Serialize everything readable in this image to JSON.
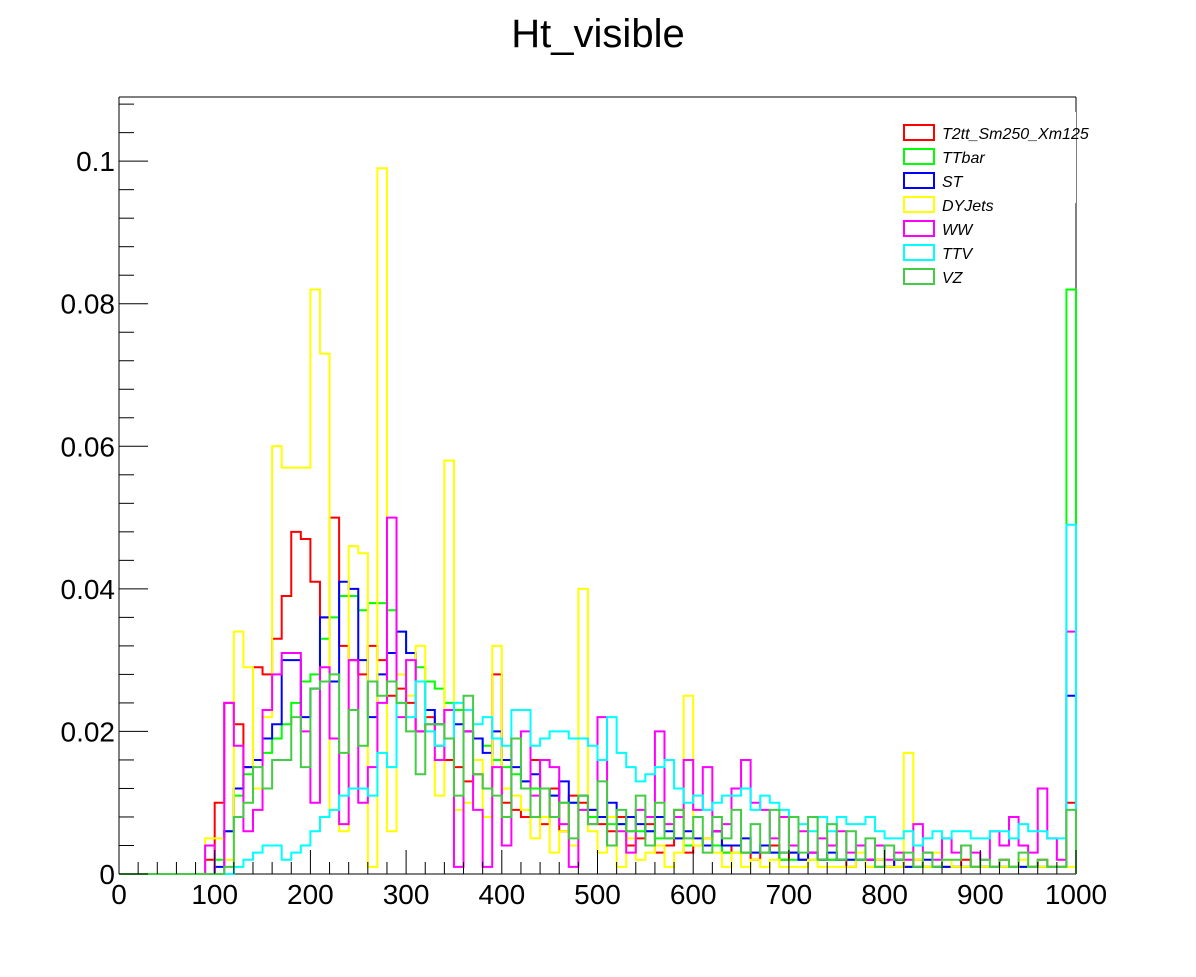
{
  "chart_data": {
    "type": "histogram",
    "title": "Ht_visible",
    "xlabel": "",
    "ylabel": "",
    "xlim": [
      0,
      1000
    ],
    "ylim": [
      0,
      0.109
    ],
    "x_ticks": [
      "0",
      "100",
      "200",
      "300",
      "400",
      "500",
      "600",
      "700",
      "800",
      "900",
      "1000"
    ],
    "x_tick_values": [
      0,
      100,
      200,
      300,
      400,
      500,
      600,
      700,
      800,
      900,
      1000
    ],
    "y_ticks": [
      "0",
      "0.02",
      "0.04",
      "0.06",
      "0.08",
      "0.1"
    ],
    "y_tick_values": [
      0,
      0.02,
      0.04,
      0.06,
      0.08,
      0.1
    ],
    "bin_width": 10,
    "bin_edges_start": 0,
    "legend_position": "top-right",
    "grid": false,
    "series": [
      {
        "name": "T2tt_Sm250_Xm125",
        "color": "#ff0000",
        "values": [
          0,
          0,
          0,
          0,
          0,
          0,
          0,
          0,
          0,
          0.002,
          0.01,
          0.024,
          0.021,
          0.015,
          0.029,
          0.028,
          0.033,
          0.039,
          0.048,
          0.047,
          0.041,
          0.036,
          0.05,
          0.032,
          0.03,
          0.028,
          0.032,
          0.03,
          0.025,
          0.026,
          0.024,
          0.02,
          0.022,
          0.018,
          0.016,
          0.015,
          0.013,
          0.014,
          0.012,
          0.028,
          0.01,
          0.009,
          0.008,
          0.016,
          0.007,
          0.012,
          0.006,
          0.011,
          0.01,
          0.009,
          0.007,
          0.006,
          0.008,
          0.004,
          0.005,
          0.007,
          0.003,
          0.004,
          0.009,
          0.003,
          0.004,
          0.005,
          0.006,
          0.003,
          0.004,
          0.003,
          0.002,
          0.003,
          0.004,
          0.002,
          0.003,
          0.002,
          0.003,
          0.002,
          0.002,
          0.002,
          0.001,
          0.002,
          0.002,
          0.001,
          0.001,
          0.002,
          0.001,
          0.002,
          0.001,
          0.001,
          0.001,
          0.001,
          0.002,
          0.001,
          0.001,
          0.001,
          0.002,
          0.001,
          0.001,
          0.001,
          0.002,
          0.001,
          0.001,
          0.01
        ]
      },
      {
        "name": "TTbar",
        "color": "#00ff00",
        "values": [
          0,
          0,
          0,
          0,
          0,
          0,
          0,
          0,
          0,
          0,
          0.002,
          0.006,
          0.011,
          0.014,
          0.016,
          0.017,
          0.019,
          0.021,
          0.024,
          0.027,
          0.028,
          0.033,
          0.036,
          0.039,
          0.039,
          0.037,
          0.038,
          0.038,
          0.037,
          0.034,
          0.031,
          0.029,
          0.027,
          0.026,
          0.024,
          0.023,
          0.02,
          0.019,
          0.018,
          0.016,
          0.015,
          0.014,
          0.013,
          0.012,
          0.012,
          0.011,
          0.01,
          0.01,
          0.009,
          0.008,
          0.008,
          0.007,
          0.007,
          0.006,
          0.006,
          0.006,
          0.005,
          0.005,
          0.005,
          0.004,
          0.004,
          0.004,
          0.004,
          0.003,
          0.003,
          0.003,
          0.003,
          0.003,
          0.003,
          0.002,
          0.002,
          0.002,
          0.002,
          0.002,
          0.002,
          0.002,
          0.002,
          0.002,
          0.001,
          0.001,
          0.001,
          0.001,
          0.001,
          0.001,
          0.001,
          0.001,
          0.001,
          0.001,
          0.001,
          0.001,
          0.001,
          0.001,
          0.001,
          0.001,
          0.001,
          0.001,
          0.001,
          0.001,
          0.001,
          0.082
        ]
      },
      {
        "name": "ST",
        "color": "#0000ff",
        "values": [
          0,
          0,
          0,
          0,
          0,
          0,
          0,
          0,
          0,
          0,
          0.001,
          0.006,
          0.012,
          0.015,
          0.016,
          0.019,
          0.021,
          0.03,
          0.03,
          0.022,
          0.026,
          0.036,
          0.027,
          0.041,
          0.04,
          0.03,
          0.022,
          0.028,
          0.031,
          0.034,
          0.031,
          0.027,
          0.023,
          0.021,
          0.023,
          0.021,
          0.02,
          0.019,
          0.017,
          0.02,
          0.016,
          0.015,
          0.013,
          0.014,
          0.012,
          0.011,
          0.013,
          0.01,
          0.011,
          0.009,
          0.008,
          0.01,
          0.007,
          0.008,
          0.007,
          0.006,
          0.008,
          0.006,
          0.005,
          0.006,
          0.005,
          0.004,
          0.006,
          0.004,
          0.004,
          0.005,
          0.003,
          0.004,
          0.003,
          0.003,
          0.003,
          0.002,
          0.003,
          0.002,
          0.003,
          0.002,
          0.002,
          0.002,
          0.002,
          0.002,
          0.001,
          0.002,
          0.001,
          0.001,
          0.002,
          0.001,
          0.001,
          0.001,
          0.001,
          0.001,
          0.001,
          0.001,
          0.001,
          0.001,
          0.001,
          0.001,
          0.001,
          0.001,
          0.001,
          0.025
        ]
      },
      {
        "name": "DYJets",
        "color": "#ffff00",
        "values": [
          0,
          0,
          0,
          0,
          0,
          0,
          0,
          0,
          0,
          0.005,
          0.005,
          0.002,
          0.034,
          0.029,
          0.012,
          0.022,
          0.06,
          0.057,
          0.057,
          0.057,
          0.082,
          0.073,
          0.009,
          0.006,
          0.046,
          0.045,
          0.001,
          0.099,
          0.006,
          0.028,
          0.025,
          0.032,
          0.02,
          0.011,
          0.058,
          0.009,
          0.01,
          0.016,
          0.008,
          0.032,
          0.012,
          0.011,
          0.009,
          0.005,
          0.008,
          0.003,
          0.006,
          0.004,
          0.04,
          0.006,
          0.003,
          0.008,
          0.001,
          0.005,
          0.002,
          0.003,
          0.004,
          0.001,
          0.003,
          0.025,
          0.004,
          0.005,
          0.003,
          0.001,
          0.003,
          0.001,
          0.002,
          0.001,
          0.002,
          0.001,
          0.001,
          0.001,
          0.002,
          0.001,
          0.001,
          0.001,
          0.001,
          0.003,
          0.001,
          0.002,
          0.001,
          0.001,
          0.017,
          0.002,
          0.001,
          0.003,
          0.002,
          0.001,
          0.001,
          0.001,
          0.001,
          0.001,
          0.001,
          0.001,
          0.002,
          0.001,
          0.001,
          0.001,
          0.001,
          0.001
        ]
      },
      {
        "name": "WW",
        "color": "#ff00ff",
        "values": [
          0,
          0,
          0,
          0,
          0,
          0,
          0,
          0,
          0,
          0.004,
          0,
          0.024,
          0.018,
          0.006,
          0.009,
          0.023,
          0.028,
          0.031,
          0.031,
          0.02,
          0.01,
          0.029,
          0.019,
          0.007,
          0.03,
          0.01,
          0.015,
          0.024,
          0.05,
          0.022,
          0.03,
          0.02,
          0.021,
          0.016,
          0.023,
          0.001,
          0.02,
          0.009,
          0.001,
          0.015,
          0.004,
          0.019,
          0.02,
          0.011,
          0.016,
          0.015,
          0.007,
          0.001,
          0.009,
          0.007,
          0.022,
          0.004,
          0.006,
          0.003,
          0.009,
          0.008,
          0.02,
          0.007,
          0.008,
          0.016,
          0.009,
          0.015,
          0.006,
          0.007,
          0.012,
          0.016,
          0.01,
          0.009,
          0.005,
          0.008,
          0.004,
          0.006,
          0.003,
          0.005,
          0.004,
          0.006,
          0.003,
          0.004,
          0.002,
          0.004,
          0.002,
          0.003,
          0.002,
          0.007,
          0.003,
          0.002,
          0.005,
          0.003,
          0.004,
          0.003,
          0.002,
          0.006,
          0.004,
          0.008,
          0.004,
          0.003,
          0.012,
          0.005,
          0.002,
          0.034
        ]
      },
      {
        "name": "TTV",
        "color": "#00ffff",
        "values": [
          0,
          0,
          0,
          0,
          0,
          0,
          0,
          0,
          0,
          0,
          0,
          0,
          0.001,
          0.002,
          0.003,
          0.004,
          0.004,
          0.002,
          0.003,
          0.004,
          0.006,
          0.008,
          0.009,
          0.011,
          0.012,
          0.012,
          0.011,
          0.017,
          0.015,
          0.024,
          0.022,
          0.027,
          0.02,
          0.018,
          0.019,
          0.024,
          0.023,
          0.021,
          0.022,
          0.019,
          0.018,
          0.023,
          0.023,
          0.018,
          0.019,
          0.02,
          0.02,
          0.019,
          0.019,
          0.018,
          0.016,
          0.022,
          0.017,
          0.015,
          0.013,
          0.014,
          0.015,
          0.016,
          0.012,
          0.01,
          0.011,
          0.009,
          0.01,
          0.011,
          0.011,
          0.012,
          0.009,
          0.011,
          0.01,
          0.009,
          0.008,
          0.007,
          0.006,
          0.008,
          0.006,
          0.008,
          0.007,
          0.007,
          0.008,
          0.006,
          0.005,
          0.005,
          0.006,
          0.004,
          0.005,
          0.006,
          0.005,
          0.006,
          0.006,
          0.005,
          0.005,
          0.006,
          0.006,
          0.005,
          0.007,
          0.006,
          0.006,
          0.005,
          0.005,
          0.049
        ]
      },
      {
        "name": "VZ",
        "color": "#44cc44",
        "values": [
          0,
          0,
          0,
          0,
          0,
          0,
          0,
          0,
          0,
          0,
          0,
          0.001,
          0.008,
          0.01,
          0.015,
          0.012,
          0.016,
          0.016,
          0.022,
          0.015,
          0.026,
          0.027,
          0.028,
          0.017,
          0.023,
          0.018,
          0.027,
          0.025,
          0.027,
          0.024,
          0.02,
          0.014,
          0.021,
          0.021,
          0.019,
          0.011,
          0.025,
          0.014,
          0.012,
          0.011,
          0.008,
          0.019,
          0.012,
          0.008,
          0.012,
          0.008,
          0.01,
          0.005,
          0.011,
          0.007,
          0.013,
          0.004,
          0.009,
          0.006,
          0.011,
          0.004,
          0.01,
          0.005,
          0.009,
          0.005,
          0.008,
          0.003,
          0.008,
          0.005,
          0.009,
          0.003,
          0.007,
          0.003,
          0.009,
          0.003,
          0.008,
          0.003,
          0.008,
          0.002,
          0.007,
          0.002,
          0.006,
          0.002,
          0.005,
          0.001,
          0.004,
          0.002,
          0.003,
          0.001,
          0.003,
          0.001,
          0.002,
          0.002,
          0.004,
          0.001,
          0.002,
          0.001,
          0.002,
          0.001,
          0.003,
          0.001,
          0.002,
          0.001,
          0.001,
          0.009
        ]
      }
    ]
  }
}
